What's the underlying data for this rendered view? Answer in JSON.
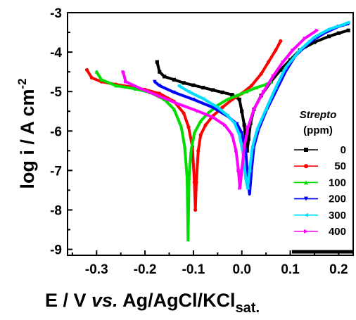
{
  "chart_data": {
    "type": "line",
    "xlabel": {
      "main": "E / V ",
      "italic": "vs.",
      "ref": " Ag/AgCl/KCl",
      "sub": "sat."
    },
    "ylabel": {
      "main": "log i / A cm",
      "sup": "-2"
    },
    "xlim": [
      -0.36,
      0.23
    ],
    "ylim": [
      -9.15,
      -3.0
    ],
    "xticks": [
      -0.3,
      -0.2,
      -0.1,
      0.0,
      0.1,
      0.2
    ],
    "xtick_labels": [
      "-0.3",
      "-0.2",
      "-0.1",
      "0.0",
      "0.1",
      "0.2"
    ],
    "yticks": [
      -9,
      -8,
      -7,
      -6,
      -5,
      -4,
      -3
    ],
    "ytick_labels": [
      "-9",
      "-8",
      "-7",
      "-6",
      "-5",
      "-4",
      "-3"
    ],
    "legend": {
      "title": "Strepto",
      "subtitle": "(ppm)",
      "placement": "right"
    },
    "series": [
      {
        "name": "0",
        "color": "#000000",
        "marker": "square",
        "points": [
          [
            -0.175,
            -4.25
          ],
          [
            -0.17,
            -4.5
          ],
          [
            -0.16,
            -4.62
          ],
          [
            -0.14,
            -4.7
          ],
          [
            -0.12,
            -4.78
          ],
          [
            -0.1,
            -4.84
          ],
          [
            -0.08,
            -4.9
          ],
          [
            -0.06,
            -4.96
          ],
          [
            -0.04,
            -5.02
          ],
          [
            -0.02,
            -5.08
          ],
          [
            -0.005,
            -5.2
          ],
          [
            0.0,
            -5.5
          ],
          [
            0.005,
            -5.85
          ],
          [
            0.008,
            -6.2
          ],
          [
            0.011,
            -6.5
          ],
          [
            0.014,
            -6.2
          ],
          [
            0.018,
            -5.8
          ],
          [
            0.025,
            -5.45
          ],
          [
            0.04,
            -5.1
          ],
          [
            0.06,
            -4.75
          ],
          [
            0.08,
            -4.45
          ],
          [
            0.1,
            -4.2
          ],
          [
            0.12,
            -3.95
          ],
          [
            0.15,
            -3.75
          ],
          [
            0.18,
            -3.6
          ],
          [
            0.2,
            -3.52
          ],
          [
            0.22,
            -3.45
          ]
        ]
      },
      {
        "name": "50",
        "color": "#ff0000",
        "marker": "circle",
        "points": [
          [
            -0.32,
            -4.45
          ],
          [
            -0.31,
            -4.65
          ],
          [
            -0.29,
            -4.75
          ],
          [
            -0.26,
            -4.82
          ],
          [
            -0.23,
            -4.88
          ],
          [
            -0.2,
            -4.95
          ],
          [
            -0.17,
            -5.05
          ],
          [
            -0.14,
            -5.25
          ],
          [
            -0.12,
            -5.55
          ],
          [
            -0.11,
            -5.9
          ],
          [
            -0.102,
            -6.4
          ],
          [
            -0.098,
            -7.3
          ],
          [
            -0.096,
            -8.0
          ],
          [
            -0.094,
            -7.3
          ],
          [
            -0.09,
            -6.5
          ],
          [
            -0.085,
            -6.1
          ],
          [
            -0.075,
            -5.85
          ],
          [
            -0.06,
            -5.62
          ],
          [
            -0.04,
            -5.4
          ],
          [
            -0.02,
            -5.2
          ],
          [
            0.0,
            -5.05
          ],
          [
            0.02,
            -4.85
          ],
          [
            0.04,
            -4.55
          ],
          [
            0.055,
            -4.25
          ],
          [
            0.07,
            -3.95
          ],
          [
            0.08,
            -3.72
          ]
        ]
      },
      {
        "name": "100",
        "color": "#00dd00",
        "marker": "triangle-up",
        "points": [
          [
            -0.3,
            -4.5
          ],
          [
            -0.29,
            -4.7
          ],
          [
            -0.26,
            -4.85
          ],
          [
            -0.22,
            -4.93
          ],
          [
            -0.19,
            -5.02
          ],
          [
            -0.16,
            -5.2
          ],
          [
            -0.14,
            -5.45
          ],
          [
            -0.125,
            -5.9
          ],
          [
            -0.118,
            -6.4
          ],
          [
            -0.113,
            -7.2
          ],
          [
            -0.111,
            -8.75
          ],
          [
            -0.109,
            -7.2
          ],
          [
            -0.105,
            -6.5
          ],
          [
            -0.098,
            -6.05
          ],
          [
            -0.085,
            -5.75
          ],
          [
            -0.07,
            -5.55
          ],
          [
            -0.05,
            -5.35
          ],
          [
            -0.03,
            -5.2
          ],
          [
            -0.01,
            -5.1
          ],
          [
            0.01,
            -5.0
          ],
          [
            0.03,
            -4.9
          ],
          [
            0.05,
            -4.82
          ],
          [
            0.06,
            -4.75
          ]
        ]
      },
      {
        "name": "200",
        "color": "#0000ff",
        "marker": "triangle-down",
        "points": [
          [
            -0.18,
            -4.75
          ],
          [
            -0.17,
            -4.85
          ],
          [
            -0.14,
            -5.02
          ],
          [
            -0.1,
            -5.2
          ],
          [
            -0.06,
            -5.4
          ],
          [
            -0.03,
            -5.62
          ],
          [
            -0.01,
            -5.82
          ],
          [
            0.0,
            -6.05
          ],
          [
            0.008,
            -6.5
          ],
          [
            0.013,
            -7.3
          ],
          [
            0.016,
            -7.6
          ],
          [
            0.02,
            -7.0
          ],
          [
            0.025,
            -6.4
          ],
          [
            0.035,
            -5.95
          ],
          [
            0.05,
            -5.5
          ],
          [
            0.07,
            -5.0
          ],
          [
            0.09,
            -4.5
          ],
          [
            0.11,
            -4.1
          ],
          [
            0.14,
            -3.75
          ],
          [
            0.17,
            -3.52
          ],
          [
            0.2,
            -3.35
          ],
          [
            0.22,
            -3.28
          ]
        ]
      },
      {
        "name": "300",
        "color": "#00ddff",
        "marker": "triangle-left",
        "points": [
          [
            -0.13,
            -4.85
          ],
          [
            -0.11,
            -5.0
          ],
          [
            -0.08,
            -5.18
          ],
          [
            -0.05,
            -5.4
          ],
          [
            -0.03,
            -5.6
          ],
          [
            -0.015,
            -5.8
          ],
          [
            -0.005,
            -6.1
          ],
          [
            0.003,
            -6.6
          ],
          [
            0.008,
            -7.2
          ],
          [
            0.012,
            -7.45
          ],
          [
            0.016,
            -7.0
          ],
          [
            0.022,
            -6.4
          ],
          [
            0.032,
            -5.95
          ],
          [
            0.05,
            -5.45
          ],
          [
            0.07,
            -4.9
          ],
          [
            0.09,
            -4.4
          ],
          [
            0.12,
            -3.95
          ],
          [
            0.15,
            -3.62
          ],
          [
            0.18,
            -3.42
          ],
          [
            0.21,
            -3.3
          ],
          [
            0.22,
            -3.25
          ]
        ]
      },
      {
        "name": "400",
        "color": "#ff00ff",
        "marker": "triangle-right",
        "points": [
          [
            -0.245,
            -4.5
          ],
          [
            -0.24,
            -4.75
          ],
          [
            -0.21,
            -4.92
          ],
          [
            -0.17,
            -5.12
          ],
          [
            -0.13,
            -5.32
          ],
          [
            -0.09,
            -5.5
          ],
          [
            -0.06,
            -5.65
          ],
          [
            -0.035,
            -5.85
          ],
          [
            -0.02,
            -6.1
          ],
          [
            -0.012,
            -6.5
          ],
          [
            -0.007,
            -7.0
          ],
          [
            -0.004,
            -7.45
          ],
          [
            0.0,
            -7.0
          ],
          [
            0.005,
            -6.4
          ],
          [
            0.013,
            -5.9
          ],
          [
            0.025,
            -5.45
          ],
          [
            0.045,
            -5.0
          ],
          [
            0.065,
            -4.6
          ],
          [
            0.085,
            -4.25
          ],
          [
            0.105,
            -3.95
          ],
          [
            0.13,
            -3.65
          ],
          [
            0.155,
            -3.45
          ]
        ]
      }
    ]
  }
}
